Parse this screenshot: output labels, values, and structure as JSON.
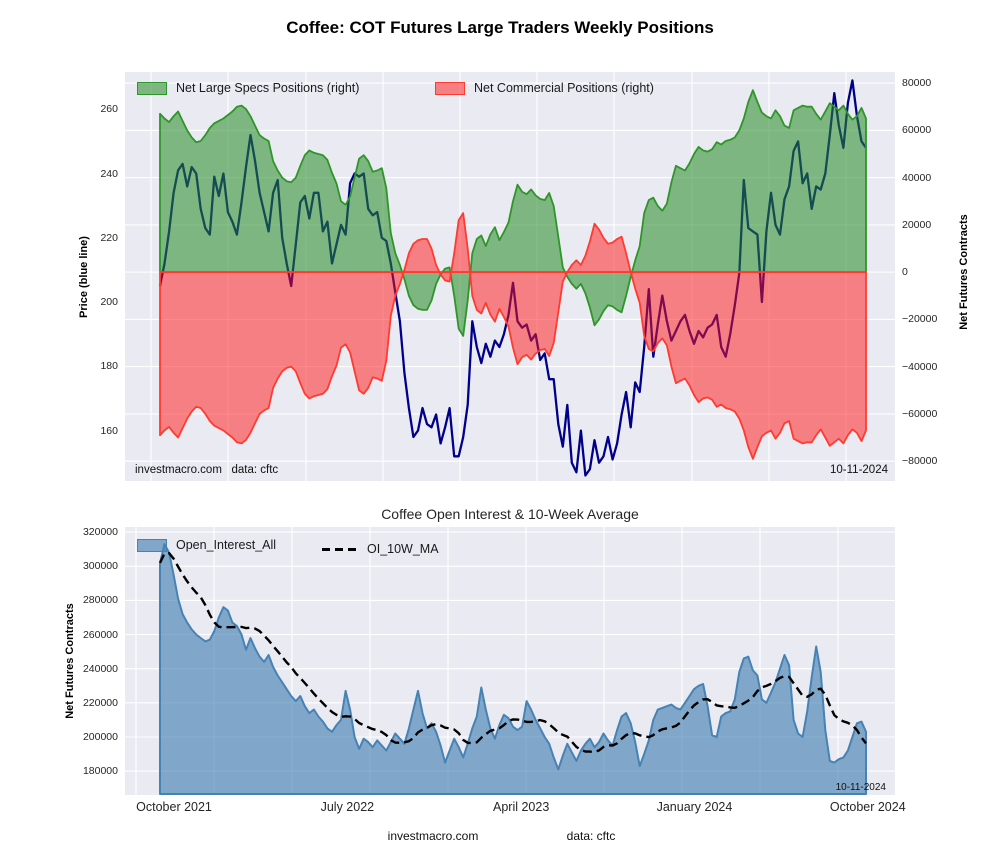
{
  "page": {
    "title": "Coffee: COT Futures Large Traders Weekly Positions"
  },
  "top_chart": {
    "title": "Coffee: COT Futures Large Traders Weekly Positions",
    "legend": [
      {
        "label": "Net Large Specs Positions (right)",
        "color": "#2e9628",
        "fill": "rgba(34,139,34,0.55)"
      },
      {
        "label": "Net Commercial Positions (right)",
        "color": "#ff3b30",
        "fill": "rgba(255,20,20,0.5)"
      }
    ],
    "left_axis": {
      "label": "Price (blue line)",
      "ticks": [
        260,
        240,
        220,
        200,
        180,
        160
      ],
      "range": [
        144.3,
        271.6
      ]
    },
    "right_axis": {
      "label": "Net Futures Contracts",
      "ticks": [
        80000,
        60000,
        40000,
        20000,
        0,
        -20000,
        -40000,
        -60000,
        -80000
      ],
      "tick_labels": [
        "80000",
        "60000",
        "40000",
        "20000",
        "0",
        "−20000",
        "−40000",
        "−60000",
        "−80000"
      ],
      "range": [
        -88400,
        84700
      ]
    },
    "watermark": "investmacro.com",
    "source": "data: cftc",
    "report_date": "10-11-2024"
  },
  "bottom_chart": {
    "title": "Coffee Open Interest & 10-Week Average",
    "legend": [
      {
        "label": "Open_Interest_All",
        "color": "#4682b4",
        "fill": "rgba(70,130,180,0.65)"
      },
      {
        "label": "OI_10W_MA",
        "color": "#000000"
      }
    ],
    "left_axis": {
      "label": "Net Futures Contracts",
      "ticks": [
        320000,
        300000,
        280000,
        260000,
        240000,
        220000,
        200000,
        180000
      ],
      "tick_labels": [
        "320000",
        "300000",
        "280000",
        "260000",
        "240000",
        "220000",
        "200000",
        "180000"
      ],
      "range": [
        166000,
        323000
      ]
    },
    "x_axis": {
      "tick_labels": [
        "October 2021",
        "July 2022",
        "April 2023",
        "January 2024",
        "October 2024"
      ],
      "tick_week_positions": [
        3.1,
        41.4,
        79.8,
        118.1,
        156.4
      ]
    },
    "report_date": "10-11-2024"
  },
  "footer": {
    "watermark": "investmacro.com",
    "source": "data: cftc"
  },
  "chart_data": [
    {
      "type": "line",
      "title": "Coffee: COT Futures Large Traders Weekly Positions",
      "x": "157 weekly reports, mid-Sep 2021 through 10-11-2024",
      "ylabel_left": "Price (blue line)",
      "ylabel_right": "Net Futures Contracts",
      "ylim_left": [
        144.3,
        271.6
      ],
      "ylim_right": [
        -88400,
        84700
      ],
      "legend_position": "upper left, inside plot, horizontal",
      "grid": true,
      "series": [
        {
          "name": "Price",
          "axis": "left",
          "kind": "line",
          "color": "#00008b",
          "values": [
            205,
            212,
            222,
            234,
            241,
            243,
            236,
            242,
            240,
            229,
            223,
            221,
            239,
            233,
            240,
            228,
            225,
            221,
            231,
            242,
            252,
            244,
            234,
            228,
            222,
            234,
            238,
            220,
            212,
            205,
            218,
            231,
            233,
            226,
            234,
            234,
            222,
            225,
            212,
            218,
            224,
            221,
            237,
            240,
            239,
            240,
            229,
            227,
            228,
            220,
            219,
            212,
            203,
            194,
            178,
            167,
            158,
            160,
            167,
            162,
            161,
            165,
            156,
            161,
            167,
            152,
            152,
            158,
            168,
            194,
            186,
            181,
            187,
            183,
            188,
            186,
            190,
            196,
            206,
            194,
            192,
            193,
            188,
            190,
            182,
            184,
            176,
            176,
            162,
            155,
            168,
            150,
            147,
            160,
            146,
            148,
            157,
            150,
            152,
            158,
            151,
            156,
            165,
            172,
            161,
            175,
            172,
            186,
            204,
            183,
            193,
            202,
            194,
            188,
            191,
            194,
            196,
            191,
            187,
            191,
            189,
            192,
            193,
            196,
            186,
            183,
            190,
            199,
            209,
            238,
            223,
            222,
            221,
            200,
            222,
            234,
            224,
            221,
            232,
            236,
            247,
            250,
            237,
            240,
            229,
            236,
            235,
            240,
            252,
            265,
            255,
            248,
            262,
            269,
            258,
            250,
            248
          ]
        },
        {
          "name": "Net Large Specs Positions (right)",
          "axis": "right",
          "kind": "area-to-zero",
          "color": "#2e9628",
          "values": [
            67000,
            65000,
            63500,
            66000,
            68000,
            64000,
            60000,
            57000,
            55000,
            55500,
            58000,
            61000,
            63000,
            64000,
            65000,
            66500,
            68000,
            70000,
            70500,
            69000,
            66000,
            62000,
            58000,
            56500,
            55500,
            47000,
            43000,
            40000,
            38500,
            38000,
            40000,
            45000,
            49500,
            51500,
            50500,
            50000,
            49500,
            47500,
            42000,
            37500,
            30000,
            28500,
            32000,
            40000,
            48000,
            49500,
            47000,
            42500,
            43000,
            44000,
            35500,
            16500,
            8000,
            3000,
            -3000,
            -10000,
            -14000,
            -15500,
            -16000,
            -16000,
            -12000,
            -5000,
            -1000,
            1500,
            2000,
            -10000,
            -24000,
            -27000,
            -12000,
            8000,
            14000,
            15500,
            11000,
            16000,
            19000,
            13500,
            17000,
            21000,
            30000,
            37000,
            34000,
            33000,
            35000,
            32500,
            31000,
            30500,
            33500,
            28000,
            15000,
            2000,
            -2000,
            -5000,
            -7000,
            -5000,
            -9000,
            -15000,
            -22500,
            -20000,
            -16500,
            -14000,
            -14500,
            -16000,
            -17000,
            -10000,
            -2000,
            5000,
            11000,
            25000,
            30500,
            31500,
            28000,
            26000,
            29000,
            38000,
            45000,
            44000,
            43000,
            46000,
            50000,
            53000,
            51500,
            51000,
            52000,
            55000,
            54000,
            55500,
            56000,
            57000,
            60000,
            65000,
            72000,
            77000,
            72000,
            67500,
            66000,
            65000,
            68500,
            66000,
            62000,
            61000,
            68500,
            69500,
            70500,
            70000,
            70000,
            67000,
            64500,
            68000,
            71500,
            70000,
            68500,
            70500,
            67000,
            64500,
            66000,
            69500,
            65000
          ]
        },
        {
          "name": "Net Commercial Positions (right)",
          "axis": "right",
          "kind": "area-to-zero",
          "color": "#ff3b30",
          "values": [
            -69000,
            -67000,
            -65500,
            -68000,
            -70000,
            -66000,
            -62000,
            -59000,
            -57000,
            -57500,
            -60000,
            -63000,
            -65000,
            -66000,
            -67000,
            -68500,
            -70000,
            -72000,
            -72500,
            -71000,
            -68000,
            -64000,
            -60000,
            -58500,
            -57500,
            -49000,
            -45000,
            -42000,
            -40500,
            -40000,
            -42000,
            -47000,
            -51500,
            -53500,
            -52500,
            -52000,
            -51500,
            -49500,
            -44000,
            -39500,
            -32000,
            -30500,
            -34000,
            -42000,
            -50000,
            -51500,
            -49000,
            -44500,
            -45000,
            -46000,
            -37500,
            -18500,
            -10000,
            -5000,
            1000,
            8000,
            12000,
            13500,
            14000,
            14000,
            10000,
            3000,
            -1000,
            -3500,
            -4000,
            8000,
            22000,
            25000,
            10000,
            -10000,
            -16000,
            -17500,
            -13000,
            -18000,
            -21000,
            -15500,
            -19000,
            -23000,
            -32000,
            -39000,
            -36000,
            -35000,
            -37000,
            -34500,
            -33000,
            -32500,
            -35500,
            -30000,
            -17000,
            -4000,
            0,
            3000,
            5000,
            3000,
            7000,
            13000,
            20500,
            18000,
            14500,
            12000,
            12500,
            14000,
            15000,
            8000,
            0,
            -7000,
            -13000,
            -27000,
            -32500,
            -33500,
            -30000,
            -28000,
            -31000,
            -40000,
            -47000,
            -46000,
            -45000,
            -48000,
            -52000,
            -55000,
            -53500,
            -53000,
            -54000,
            -57000,
            -56000,
            -57500,
            -58000,
            -59000,
            -62000,
            -67000,
            -74000,
            -79000,
            -74000,
            -69500,
            -68000,
            -67000,
            -70500,
            -68000,
            -64000,
            -63000,
            -70500,
            -71500,
            -72500,
            -72000,
            -72000,
            -69000,
            -66500,
            -70000,
            -73500,
            -72000,
            -70500,
            -72500,
            -69000,
            -66500,
            -68000,
            -71500,
            -67000
          ]
        }
      ]
    },
    {
      "type": "area",
      "title": "Coffee Open Interest & 10-Week Average",
      "x": "157 weekly reports, mid-Sep 2021 through 10-11-2024",
      "xlabel_ticks": [
        "October 2021",
        "July 2022",
        "April 2023",
        "January 2024",
        "October 2024"
      ],
      "ylabel": "Net Futures Contracts",
      "ylim": [
        166000,
        323000
      ],
      "grid": true,
      "series": [
        {
          "name": "Open_Interest_All",
          "kind": "area-to-bottom",
          "color": "#4682b4",
          "values": [
            302000,
            313000,
            308000,
            295000,
            281000,
            272000,
            267000,
            263000,
            260000,
            258000,
            256000,
            257000,
            262000,
            270000,
            276000,
            274000,
            267000,
            265000,
            260000,
            251000,
            258000,
            252000,
            247000,
            244000,
            248000,
            241000,
            236000,
            232000,
            228000,
            224000,
            221000,
            224000,
            218000,
            214000,
            216000,
            212000,
            209000,
            205000,
            203000,
            207000,
            210000,
            227000,
            216000,
            200000,
            193000,
            199000,
            197000,
            194000,
            198000,
            195000,
            192000,
            197000,
            202000,
            199000,
            196000,
            205000,
            216000,
            227000,
            214000,
            205000,
            208000,
            203000,
            195000,
            185000,
            192000,
            199000,
            194000,
            188000,
            196000,
            205000,
            212000,
            229000,
            216000,
            205000,
            199000,
            207000,
            213000,
            211000,
            206000,
            204000,
            206000,
            221000,
            216000,
            210000,
            205000,
            200000,
            196000,
            188000,
            181000,
            189000,
            196000,
            191000,
            186000,
            192000,
            196000,
            199000,
            194000,
            197000,
            202000,
            198000,
            195000,
            204000,
            212000,
            214000,
            208000,
            197000,
            183000,
            190000,
            198000,
            210000,
            216000,
            217000,
            218000,
            219000,
            217000,
            216000,
            220000,
            224000,
            228000,
            230000,
            231000,
            218000,
            201000,
            200000,
            212000,
            214000,
            215000,
            222000,
            238000,
            246000,
            247000,
            239000,
            236000,
            222000,
            220000,
            226000,
            232000,
            240000,
            248000,
            242000,
            210000,
            202000,
            200000,
            215000,
            235000,
            253000,
            238000,
            204000,
            186000,
            185000,
            187000,
            188000,
            192000,
            200000,
            208000,
            209000,
            203000
          ]
        },
        {
          "name": "OI_10W_MA",
          "kind": "dashed-line",
          "color": "#000000",
          "derived": "trailing 10-week mean of Open_Interest_All"
        }
      ]
    }
  ]
}
